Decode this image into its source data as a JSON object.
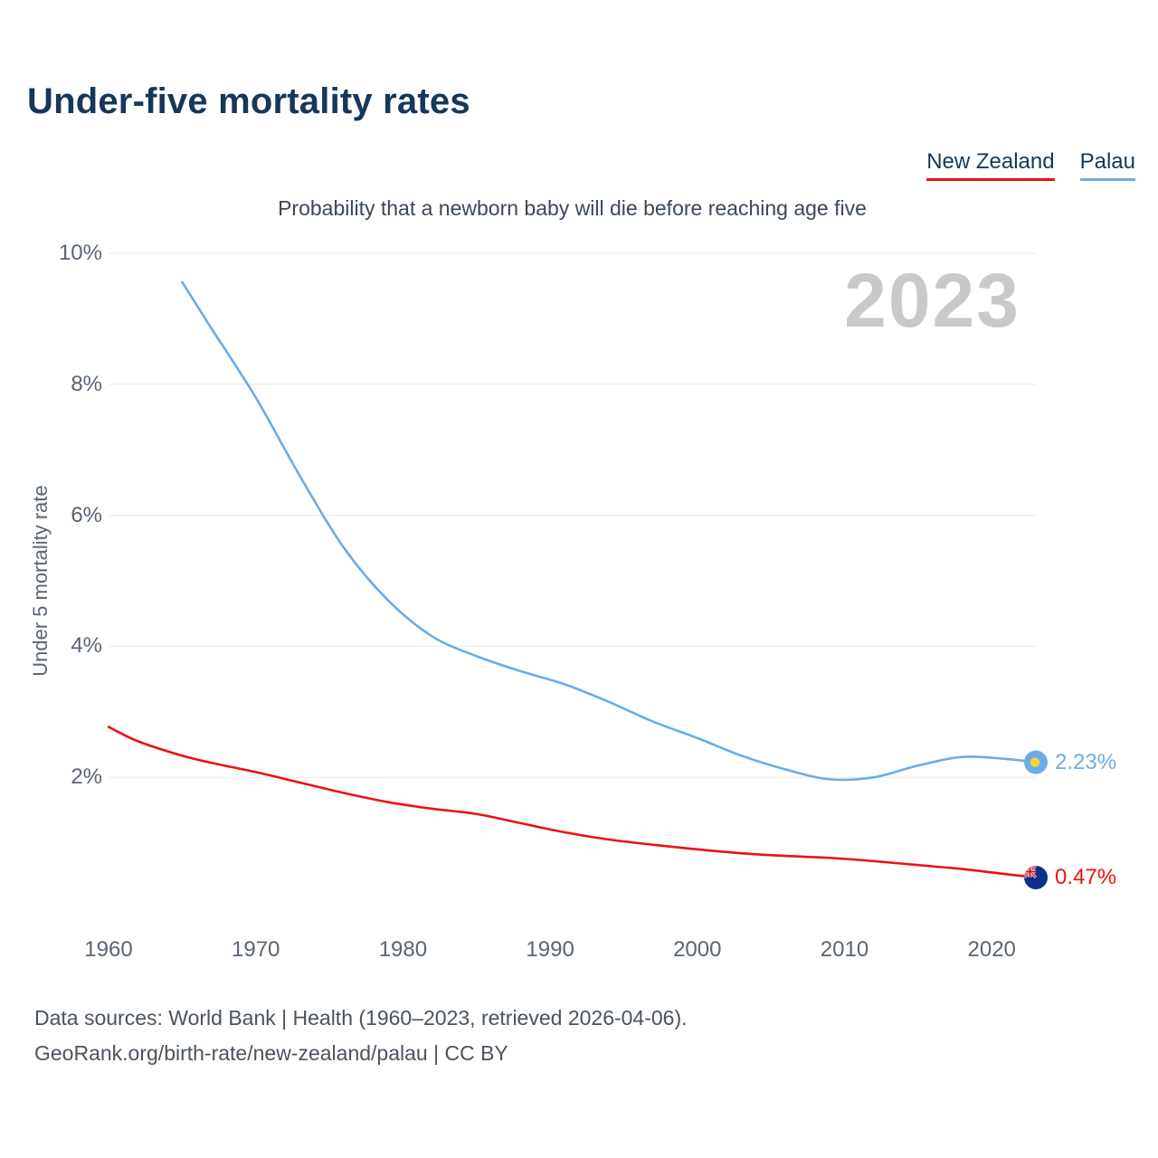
{
  "chart_data": {
    "type": "line",
    "title": "Under-five mortality rates",
    "subtitle": "Probability that a newborn baby will die before reaching age five",
    "ylabel": "Under 5 mortality rate",
    "xlabel": "",
    "year_watermark": "2023",
    "xlim": [
      1960,
      2023
    ],
    "ylim": [
      0,
      10
    ],
    "xticks": [
      1960,
      1970,
      1980,
      1990,
      2000,
      2010,
      2020
    ],
    "yticks": [
      2,
      4,
      6,
      8,
      10
    ],
    "ytick_suffix": "%",
    "grid": true,
    "grid_color": "#e9e9e9",
    "legend_position": "top-right",
    "series": [
      {
        "name": "New Zealand",
        "id": "new-zealand",
        "color": "#ee1111",
        "end_label": "0.47%",
        "marker": {
          "fill": "#0b2f8a",
          "jack_white": "#ffffff",
          "jack_red": "#d8121c"
        },
        "x": [
          1960,
          1962,
          1965,
          1967,
          1970,
          1973,
          1976,
          1979,
          1982,
          1985,
          1988,
          1991,
          1994,
          1997,
          2000,
          2003,
          2006,
          2009,
          2012,
          2015,
          2018,
          2021,
          2023
        ],
        "values": [
          2.77,
          2.55,
          2.33,
          2.22,
          2.08,
          1.92,
          1.76,
          1.62,
          1.52,
          1.44,
          1.3,
          1.16,
          1.05,
          0.97,
          0.9,
          0.84,
          0.8,
          0.77,
          0.72,
          0.66,
          0.6,
          0.52,
          0.47
        ]
      },
      {
        "name": "Palau",
        "id": "palau",
        "color": "#6cace4",
        "end_label": "2.23%",
        "marker": {
          "fill": "#6cace4",
          "dot": "#ffd335"
        },
        "x": [
          1965,
          1967,
          1970,
          1973,
          1976,
          1979,
          1982,
          1985,
          1988,
          1991,
          1994,
          1997,
          2000,
          2003,
          2006,
          2009,
          2012,
          2015,
          2018,
          2021,
          2023
        ],
        "values": [
          9.56,
          8.85,
          7.8,
          6.6,
          5.5,
          4.7,
          4.15,
          3.85,
          3.62,
          3.42,
          3.15,
          2.85,
          2.6,
          2.33,
          2.12,
          1.97,
          2.0,
          2.18,
          2.31,
          2.28,
          2.23
        ]
      }
    ]
  },
  "footer": {
    "line1": "Data sources: World Bank | Health (1960–2023, retrieved 2026-04-06).",
    "line2": "GeoRank.org/birth-rate/new-zealand/palau | CC BY"
  }
}
